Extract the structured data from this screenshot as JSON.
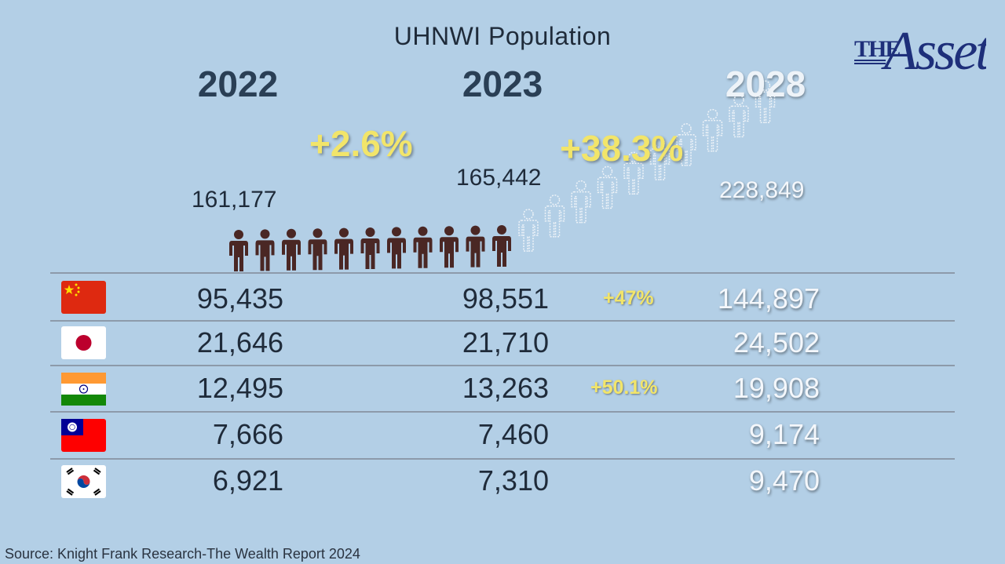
{
  "chart_data": {
    "type": "table",
    "title": "UHNWI Population",
    "columns": [
      "2022",
      "2023",
      "2028"
    ],
    "totals": [
      {
        "year": "2022",
        "value": 161177,
        "label": "161,177"
      },
      {
        "year": "2023",
        "value": 165442,
        "label": "165,442"
      },
      {
        "year": "2028",
        "value": 228849,
        "label": "228,849"
      }
    ],
    "growth": [
      {
        "from": "2022",
        "to": "2023",
        "label": "+2.6%"
      },
      {
        "from": "2023",
        "to": "2028",
        "label": "+38.3%"
      }
    ],
    "rows": [
      {
        "country": "China",
        "flag": "china-flag-icon",
        "v2022": "95,435",
        "v2023": "98,551",
        "change": "+47%",
        "v2028": "144,897"
      },
      {
        "country": "Japan",
        "flag": "japan-flag-icon",
        "v2022": "21,646",
        "v2023": "21,710",
        "change": "",
        "v2028": "24,502"
      },
      {
        "country": "India",
        "flag": "india-flag-icon",
        "v2022": "12,495",
        "v2023": "13,263",
        "change": "+50.1%",
        "v2028": "19,908"
      },
      {
        "country": "Taiwan",
        "flag": "taiwan-flag-icon",
        "v2022": "7,666",
        "v2023": "7,460",
        "change": "",
        "v2028": "9,174"
      },
      {
        "country": "South Korea",
        "flag": "south-korea-flag-icon",
        "v2022": "6,921",
        "v2023": "7,310",
        "change": "",
        "v2028": "9,470"
      }
    ],
    "pictogram": {
      "solid_figures": 11,
      "outline_figures": 10,
      "solid_color": "#4a2724",
      "outline_color": "#eef3f8"
    }
  },
  "logo": {
    "the": "THE",
    "asset": "Asset",
    "color": "#1e2f7a"
  },
  "source": "Source: Knight Frank Research-The Wealth Report 2024"
}
